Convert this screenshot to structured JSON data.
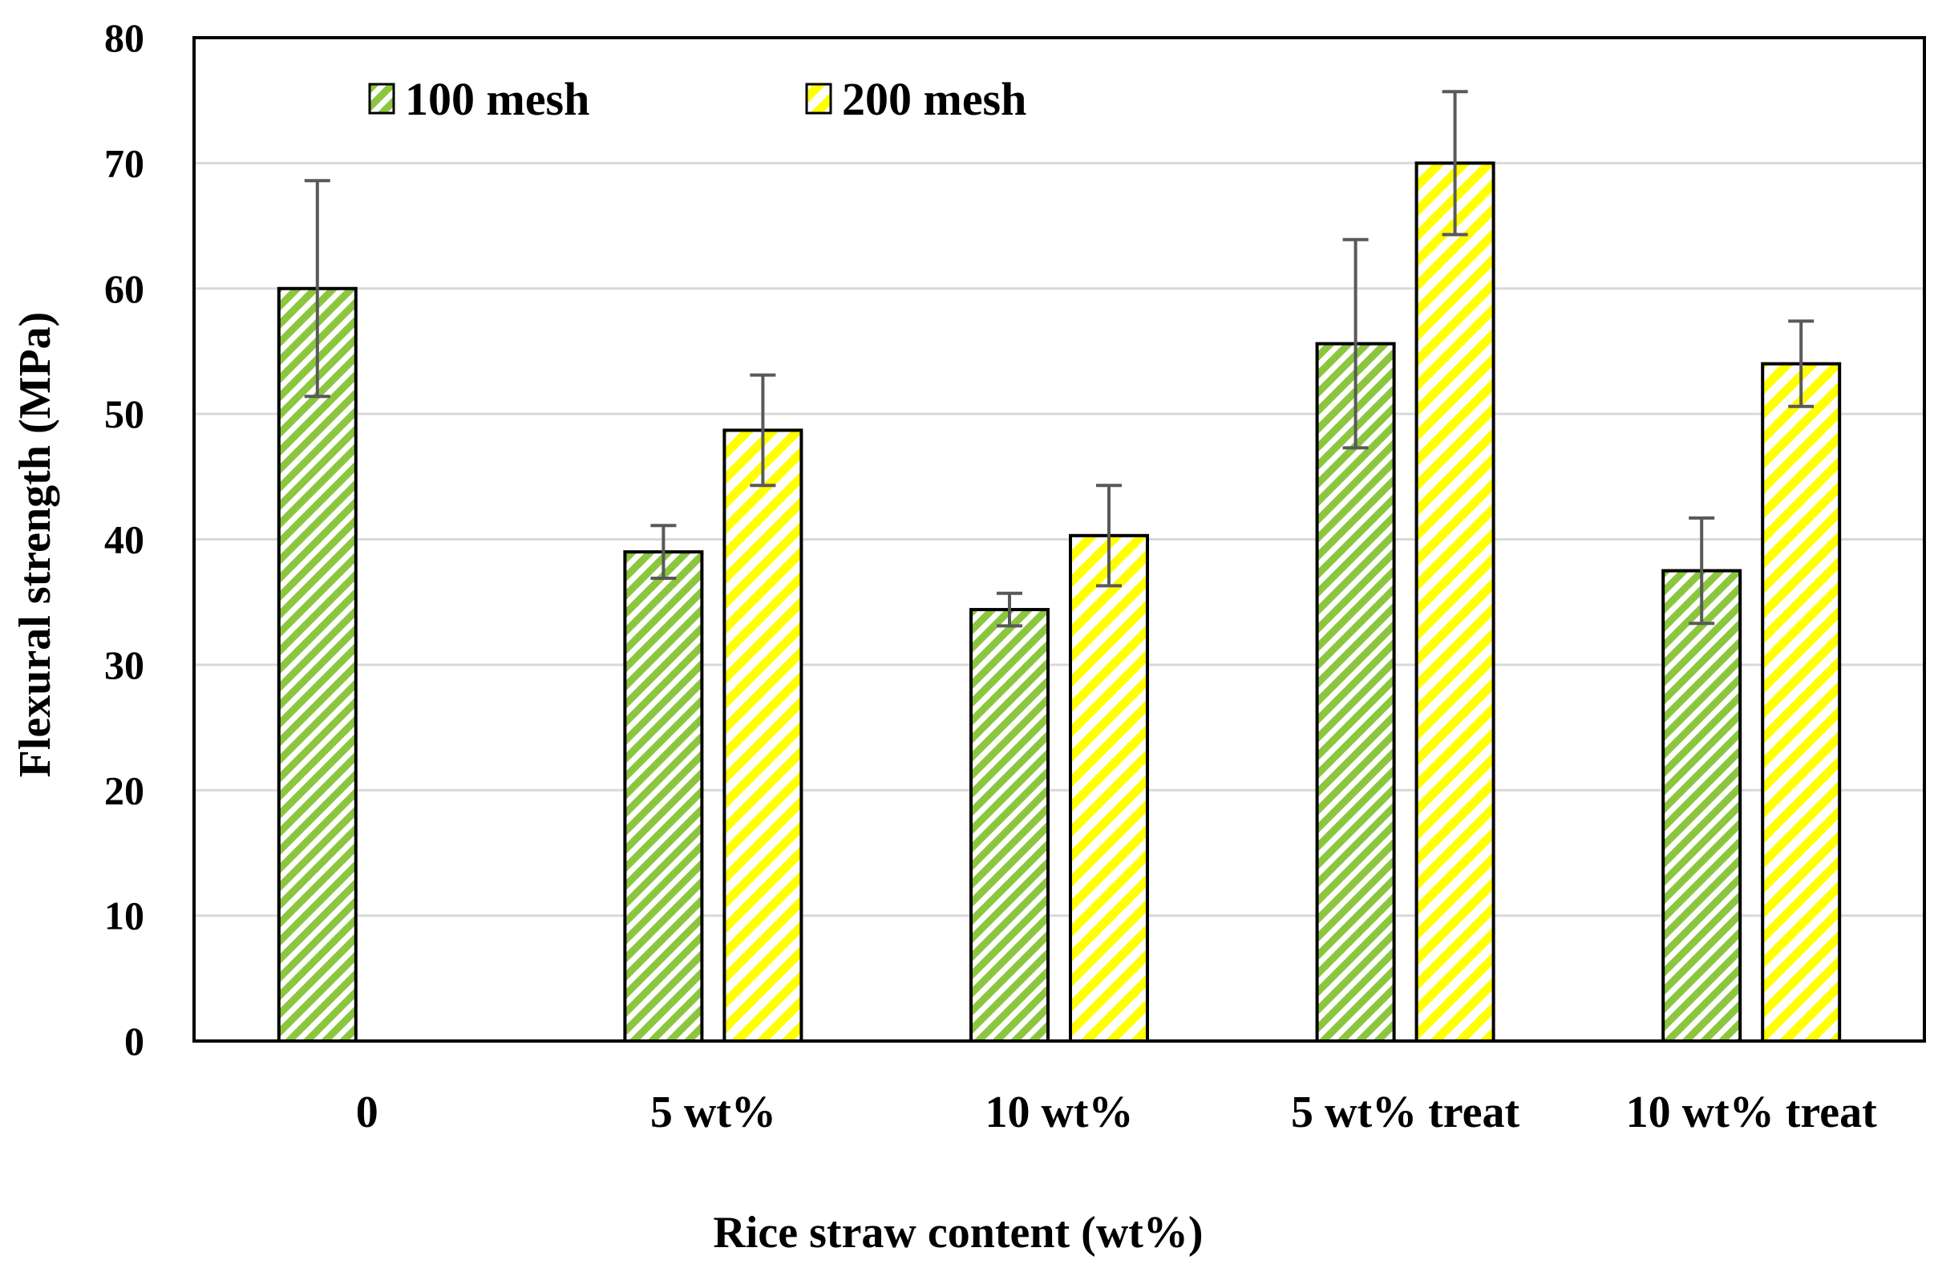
{
  "chart_data": {
    "type": "bar",
    "title": "",
    "xlabel": "Rice straw content (wt%)",
    "ylabel": "Flexural strength (MPa)",
    "ylim": [
      0,
      80
    ],
    "yticks": [
      0,
      10,
      20,
      30,
      40,
      50,
      60,
      70,
      80
    ],
    "grid": true,
    "legend_position": "top-left",
    "categories": [
      "0",
      "5 wt%",
      "10 wt%",
      "5 wt% treat",
      "10 wt% treat"
    ],
    "series": [
      {
        "name": "100 mesh",
        "color": "#8cc63f",
        "values": [
          60.0,
          39.0,
          34.4,
          55.6,
          37.5
        ],
        "errors": [
          8.6,
          2.1,
          1.3,
          8.3,
          4.2
        ]
      },
      {
        "name": "200 mesh",
        "color": "#ffff00",
        "values": [
          null,
          48.7,
          40.3,
          70.0,
          54.0
        ],
        "errors": [
          null,
          4.4,
          4.0,
          5.7,
          3.4
        ]
      }
    ]
  }
}
